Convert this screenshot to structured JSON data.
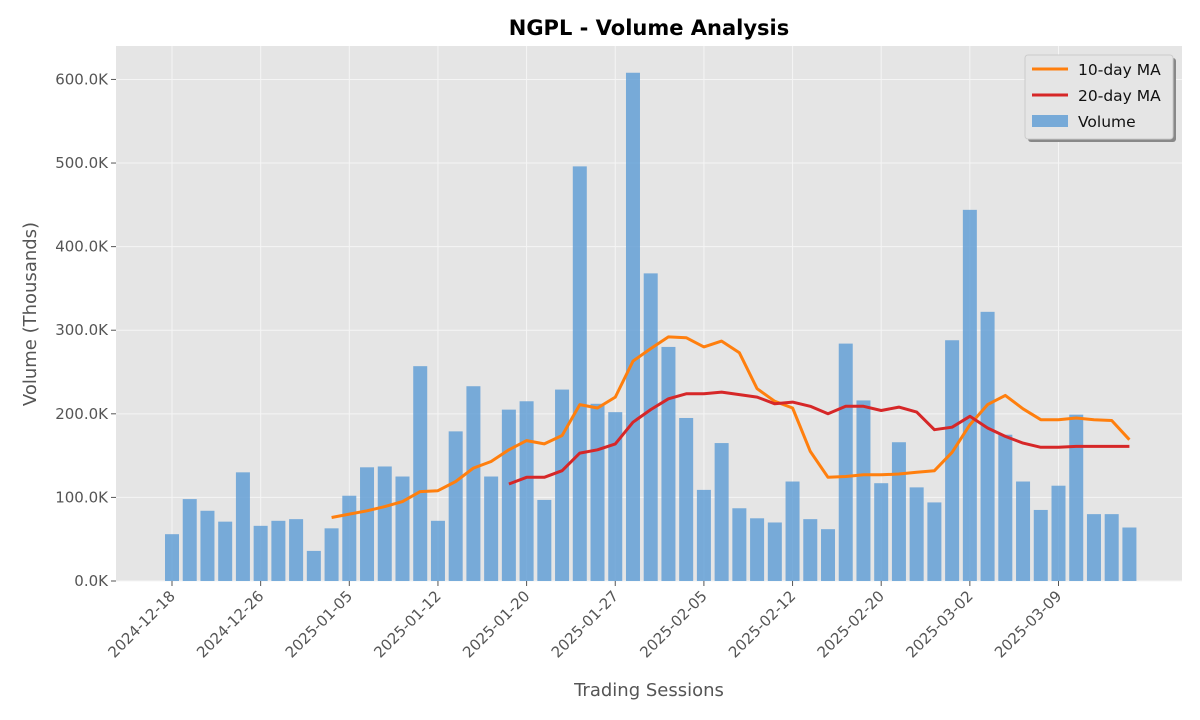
{
  "chart_data": {
    "type": "bar",
    "title": "NGPL - Volume Analysis",
    "xlabel": "Trading Sessions",
    "ylabel": "Volume (Thousands)",
    "ylim": [
      0,
      640000
    ],
    "yticks": [
      0,
      100000,
      200000,
      300000,
      400000,
      500000,
      600000
    ],
    "ytick_labels": [
      "0.0K",
      "100.0K",
      "200.0K",
      "300.0K",
      "400.0K",
      "500.0K",
      "600.0K"
    ],
    "xtick_labels": [
      "2024-12-18",
      "2024-12-26",
      "2025-01-05",
      "2025-01-12",
      "2025-01-20",
      "2025-01-27",
      "2025-02-05",
      "2025-02-12",
      "2025-02-20",
      "2025-03-02",
      "2025-03-09"
    ],
    "xtick_positions": [
      0,
      5,
      10,
      15,
      20,
      25,
      30,
      35,
      40,
      45,
      50
    ],
    "grid": true,
    "legend_position": "top-right",
    "legend": [
      "10-day MA",
      "20-day MA",
      "Volume"
    ],
    "colors": {
      "volume": "#5b9bd5",
      "ma10": "#ff7f0e",
      "ma20": "#d62728",
      "plot_bg": "#e5e5e5",
      "grid": "#f5f5f5"
    },
    "series": [
      {
        "name": "Volume",
        "type": "bar",
        "values": [
          56000,
          98000,
          84000,
          71000,
          130000,
          66000,
          72000,
          74000,
          36000,
          63000,
          102000,
          136000,
          137000,
          125000,
          257000,
          72000,
          179000,
          233000,
          125000,
          205000,
          215000,
          97000,
          229000,
          496000,
          212000,
          202000,
          608000,
          368000,
          280000,
          195000,
          109000,
          165000,
          87000,
          75000,
          70000,
          119000,
          74000,
          62000,
          284000,
          216000,
          117000,
          166000,
          112000,
          94000,
          288000,
          444000,
          322000,
          175000,
          119000,
          85000,
          114000,
          199000,
          80000,
          80000,
          64000
        ]
      },
      {
        "name": "10-day MA",
        "type": "line",
        "values": [
          null,
          null,
          null,
          null,
          null,
          null,
          null,
          null,
          null,
          76000,
          80000,
          84000,
          89000,
          95000,
          107000,
          108000,
          119000,
          135000,
          143000,
          157000,
          168000,
          164000,
          174000,
          211000,
          207000,
          220000,
          263000,
          278000,
          292000,
          291000,
          280000,
          287000,
          273000,
          230000,
          215000,
          207000,
          155000,
          124000,
          125000,
          127000,
          127000,
          128000,
          130000,
          132000,
          154000,
          187000,
          211000,
          222000,
          206000,
          193000,
          193000,
          195000,
          193000,
          192000,
          169000
        ]
      },
      {
        "name": "20-day MA",
        "type": "line",
        "values": [
          null,
          null,
          null,
          null,
          null,
          null,
          null,
          null,
          null,
          null,
          null,
          null,
          null,
          null,
          null,
          null,
          null,
          null,
          null,
          116000,
          124000,
          124000,
          132000,
          153000,
          157000,
          164000,
          190000,
          205000,
          218000,
          224000,
          224000,
          226000,
          223000,
          220000,
          212000,
          214000,
          209000,
          200000,
          209000,
          209000,
          204000,
          208000,
          202000,
          181000,
          184000,
          197000,
          183000,
          173000,
          165000,
          160000,
          160000,
          161000,
          161000,
          161000,
          161000
        ]
      }
    ]
  }
}
